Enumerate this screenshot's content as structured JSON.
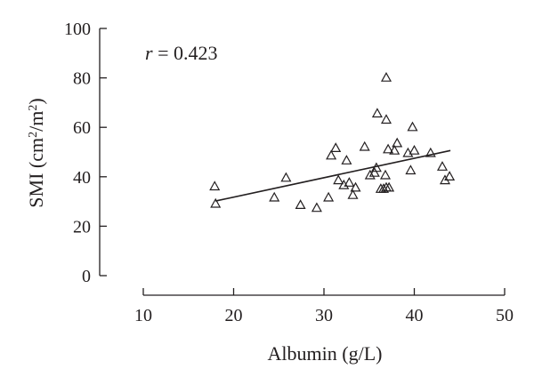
{
  "chart_data": {
    "type": "scatter",
    "title": "",
    "xlabel": "Albumin (g/L)",
    "ylabel": {
      "base": "SMI (cm",
      "sup1": "2",
      "mid": "/m",
      "sup2": "2",
      "end": ")"
    },
    "xlim": [
      10,
      50
    ],
    "ylim": [
      0,
      100
    ],
    "xticks": [
      10,
      20,
      30,
      40,
      50
    ],
    "yticks": [
      0,
      20,
      40,
      60,
      80,
      100
    ],
    "grid": false,
    "marker": "open-triangle",
    "annotation": {
      "var": "r",
      "rest": " = 0.423"
    },
    "points": [
      [
        17.9,
        36
      ],
      [
        18.0,
        29
      ],
      [
        24.5,
        31.5
      ],
      [
        25.8,
        39.5
      ],
      [
        27.4,
        28.5
      ],
      [
        29.2,
        27.3
      ],
      [
        30.5,
        31.5
      ],
      [
        30.8,
        48.5
      ],
      [
        31.3,
        51.5
      ],
      [
        31.6,
        38.5
      ],
      [
        32.2,
        36.5
      ],
      [
        32.5,
        46.5
      ],
      [
        32.8,
        37.5
      ],
      [
        33.2,
        32.5
      ],
      [
        33.5,
        35.5
      ],
      [
        34.5,
        52
      ],
      [
        35.1,
        40.5
      ],
      [
        35.6,
        41.5
      ],
      [
        35.8,
        43.5
      ],
      [
        35.9,
        65.5
      ],
      [
        36.3,
        35
      ],
      [
        36.6,
        35
      ],
      [
        36.8,
        40.5
      ],
      [
        36.9,
        35.5
      ],
      [
        36.9,
        63
      ],
      [
        36.9,
        80
      ],
      [
        37.1,
        51
      ],
      [
        37.2,
        35.5
      ],
      [
        37.8,
        50.5
      ],
      [
        38.1,
        53.5
      ],
      [
        39.3,
        49.5
      ],
      [
        39.6,
        42.5
      ],
      [
        39.8,
        60
      ],
      [
        40.0,
        50.5
      ],
      [
        41.8,
        49.5
      ],
      [
        43.1,
        44
      ],
      [
        43.4,
        38.5
      ],
      [
        43.9,
        40
      ]
    ],
    "trendline": {
      "x": [
        18,
        44
      ],
      "y": [
        30.2,
        50.6
      ]
    }
  }
}
